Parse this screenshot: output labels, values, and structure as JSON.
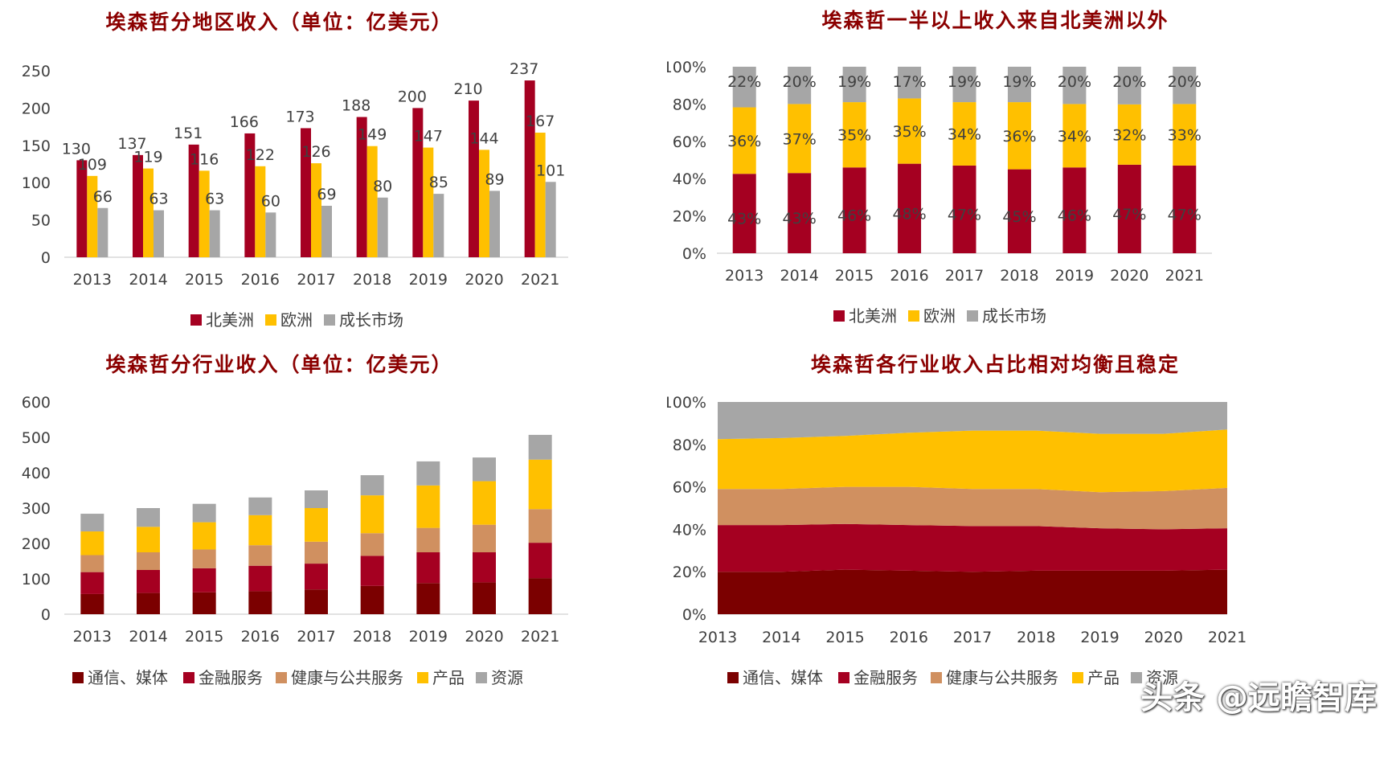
{
  "watermark": "头条 @远瞻智库",
  "colors": {
    "north_america": "#a50021",
    "europe": "#ffc000",
    "growth": "#a6a6a6",
    "telecom": "#7b0000",
    "finance": "#a50021",
    "health": "#d09060",
    "products": "#ffc000",
    "resources": "#a6a6a6",
    "axis": "#d9d9d9",
    "text": "#404040"
  },
  "chart_data": [
    {
      "id": "region-revenue",
      "type": "bar",
      "title": "埃森哲分地区收入（单位：亿美元）",
      "categories": [
        "2013",
        "2014",
        "2015",
        "2016",
        "2017",
        "2018",
        "2019",
        "2020",
        "2021"
      ],
      "ylim": [
        0,
        250
      ],
      "yticks": [
        "0",
        "50",
        "100",
        "150",
        "200",
        "250"
      ],
      "yticks_values": [
        0,
        50,
        100,
        150,
        200,
        250
      ],
      "legend_position": "bottom",
      "series": [
        {
          "name": "北美洲",
          "color_key": "north_america",
          "values": [
            130,
            137,
            151,
            166,
            173,
            188,
            200,
            210,
            237
          ]
        },
        {
          "name": "欧洲",
          "color_key": "europe",
          "values": [
            109,
            119,
            116,
            122,
            126,
            149,
            147,
            144,
            167
          ]
        },
        {
          "name": "成长市场",
          "color_key": "growth",
          "values": [
            66,
            63,
            63,
            60,
            69,
            80,
            85,
            89,
            101
          ]
        }
      ]
    },
    {
      "id": "region-share",
      "type": "bar",
      "stacked": true,
      "title": "埃森哲一半以上收入来自北美洲以外",
      "categories": [
        "2013",
        "2014",
        "2015",
        "2016",
        "2017",
        "2018",
        "2019",
        "2020",
        "2021"
      ],
      "ylim": [
        0,
        100
      ],
      "yticks": [
        "0%",
        "20%",
        "40%",
        "60%",
        "80%",
        "100%"
      ],
      "yticks_values": [
        0,
        20,
        40,
        60,
        80,
        100
      ],
      "legend_position": "bottom",
      "series": [
        {
          "name": "北美洲",
          "color_key": "north_america",
          "values": [
            43,
            43,
            46,
            48,
            47,
            45,
            46,
            47,
            47
          ],
          "labels": [
            "43%",
            "43%",
            "46%",
            "48%",
            "47%",
            "45%",
            "46%",
            "47%",
            "47%"
          ]
        },
        {
          "name": "欧洲",
          "color_key": "europe",
          "values": [
            36,
            37,
            35,
            35,
            34,
            36,
            34,
            32,
            33
          ],
          "labels": [
            "36%",
            "37%",
            "35%",
            "35%",
            "34%",
            "36%",
            "34%",
            "32%",
            "33%"
          ]
        },
        {
          "name": "成长市场",
          "color_key": "growth",
          "values": [
            22,
            20,
            19,
            17,
            19,
            19,
            20,
            20,
            20
          ],
          "labels": [
            "22%",
            "20%",
            "19%",
            "17%",
            "19%",
            "19%",
            "20%",
            "20%",
            "20%"
          ]
        }
      ]
    },
    {
      "id": "industry-revenue",
      "type": "bar",
      "stacked": true,
      "title": "埃森哲分行业收入（单位：亿美元）",
      "categories": [
        "2013",
        "2014",
        "2015",
        "2016",
        "2017",
        "2018",
        "2019",
        "2020",
        "2021"
      ],
      "ylim": [
        0,
        600
      ],
      "yticks": [
        "0",
        "100",
        "200",
        "300",
        "400",
        "500",
        "600"
      ],
      "yticks_values": [
        0,
        100,
        200,
        300,
        400,
        500,
        600
      ],
      "legend_position": "bottom",
      "series": [
        {
          "name": "通信、媒体",
          "color_key": "telecom",
          "values": [
            57,
            60,
            62,
            65,
            70,
            80,
            88,
            90,
            102
          ]
        },
        {
          "name": "金融服务",
          "color_key": "finance",
          "values": [
            62,
            65,
            68,
            72,
            73,
            85,
            87,
            85,
            100
          ]
        },
        {
          "name": "健康与公共服务",
          "color_key": "health",
          "values": [
            48,
            50,
            53,
            58,
            62,
            64,
            69,
            78,
            95
          ]
        },
        {
          "name": "产品",
          "color_key": "products",
          "values": [
            67,
            72,
            77,
            85,
            95,
            107,
            120,
            123,
            140
          ]
        },
        {
          "name": "资源",
          "color_key": "resources",
          "values": [
            50,
            53,
            52,
            50,
            50,
            57,
            68,
            67,
            70
          ]
        }
      ]
    },
    {
      "id": "industry-share",
      "type": "area",
      "stacked": true,
      "title": "埃森哲各行业收入占比相对均衡且稳定",
      "categories": [
        "2013",
        "2014",
        "2015",
        "2016",
        "2017",
        "2018",
        "2019",
        "2020",
        "2021"
      ],
      "ylim": [
        0,
        100
      ],
      "yticks": [
        "0%",
        "20%",
        "40%",
        "60%",
        "80%",
        "100%"
      ],
      "yticks_values": [
        0,
        20,
        40,
        60,
        80,
        100
      ],
      "legend_position": "bottom",
      "series": [
        {
          "name": "通信、媒体",
          "color_key": "telecom",
          "values": [
            20,
            20,
            21,
            20.5,
            20,
            20.5,
            20.5,
            20.5,
            21
          ]
        },
        {
          "name": "金融服务",
          "color_key": "finance",
          "values": [
            22,
            22,
            21.5,
            21.5,
            21.5,
            21,
            20,
            19.5,
            19.5
          ]
        },
        {
          "name": "健康与公共服务",
          "color_key": "health",
          "values": [
            17,
            17,
            17.5,
            18,
            17.5,
            17.5,
            17,
            18,
            19
          ]
        },
        {
          "name": "产品",
          "color_key": "products",
          "values": [
            23.5,
            24,
            24,
            25.5,
            27.5,
            27.5,
            27.5,
            27,
            27.5
          ]
        },
        {
          "name": "资源",
          "color_key": "resources",
          "values": [
            17.5,
            17,
            16,
            14.5,
            13.5,
            13.5,
            15,
            15,
            13
          ]
        }
      ]
    }
  ]
}
